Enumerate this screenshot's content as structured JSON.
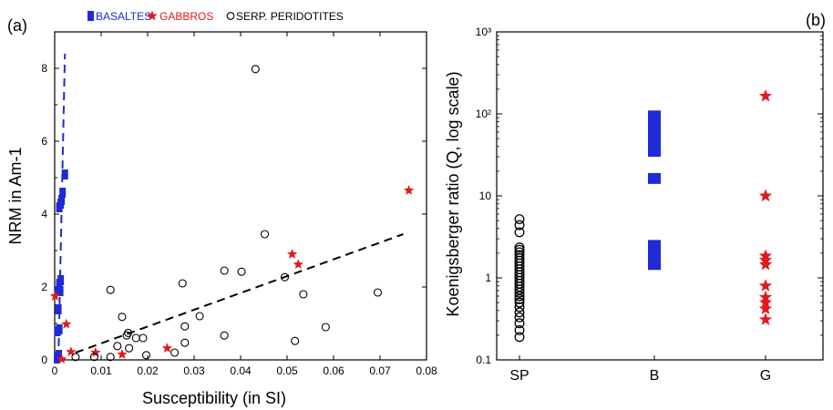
{
  "figure": {
    "panel_a_label": "(a)",
    "panel_b_label": "(b)"
  },
  "colors": {
    "basalt": "#1f2bd6",
    "gabbro": "#e01b1b",
    "peridotite": "#000000",
    "text": "#000000"
  },
  "chart_data": [
    {
      "type": "scatter",
      "panel": "(a)",
      "xlabel": "Susceptibility (in SI)",
      "ylabel": "NRM in Am-1",
      "xlim": [
        0,
        0.08
      ],
      "ylim": [
        0,
        9
      ],
      "xticks": [
        "0",
        "0.01",
        "0.02",
        "0.03",
        "0.04",
        "0.05",
        "0.06",
        "0.07",
        "0.08"
      ],
      "yticks": [
        "0",
        "2",
        "4",
        "6",
        "8"
      ],
      "legend": [
        {
          "label": "BASALTES",
          "symbol": "square",
          "color": "#1f2bd6"
        },
        {
          "label": "GABBROS",
          "symbol": "star",
          "color": "#e01b1b"
        },
        {
          "label": "SERP. PERIDOTITES",
          "symbol": "circle",
          "color": "#000000"
        }
      ],
      "legend_position": "top",
      "series": [
        {
          "name": "BASALTES",
          "marker": "square",
          "color": "#1f2bd6",
          "points": [
            [
              0.0004,
              0.05
            ],
            [
              0.0006,
              0.1
            ],
            [
              0.0008,
              0.15
            ],
            [
              0.0005,
              0.8
            ],
            [
              0.0009,
              0.85
            ],
            [
              0.0007,
              1.4
            ],
            [
              0.0006,
              1.9
            ],
            [
              0.0009,
              2.1
            ],
            [
              0.0012,
              2.2
            ],
            [
              0.0011,
              1.9
            ],
            [
              0.0009,
              4.2
            ],
            [
              0.0012,
              4.3
            ],
            [
              0.0014,
              4.4
            ],
            [
              0.0016,
              4.6
            ],
            [
              0.0021,
              5.1
            ]
          ]
        },
        {
          "name": "GABBROS",
          "marker": "star",
          "color": "#e01b1b",
          "points": [
            [
              0.0001,
              1.75
            ],
            [
              0.0025,
              0.98
            ],
            [
              0.0015,
              0.02
            ],
            [
              0.0035,
              0.22
            ],
            [
              0.0088,
              0.2
            ],
            [
              0.0145,
              0.15
            ],
            [
              0.0242,
              0.32
            ],
            [
              0.0511,
              2.9
            ],
            [
              0.0524,
              2.62
            ],
            [
              0.0762,
              4.65
            ]
          ]
        },
        {
          "name": "SERP. PERIDOTITES",
          "marker": "circle",
          "color": "#000000",
          "points": [
            [
              0.0045,
              0.08
            ],
            [
              0.0085,
              0.08
            ],
            [
              0.012,
              0.08
            ],
            [
              0.0135,
              0.38
            ],
            [
              0.016,
              0.32
            ],
            [
              0.0175,
              0.6
            ],
            [
              0.019,
              0.6
            ],
            [
              0.0197,
              0.13
            ],
            [
              0.0145,
              1.18
            ],
            [
              0.0155,
              0.67
            ],
            [
              0.0158,
              0.74
            ],
            [
              0.012,
              1.92
            ],
            [
              0.0258,
              0.2
            ],
            [
              0.0275,
              2.1
            ],
            [
              0.028,
              0.92
            ],
            [
              0.028,
              0.47
            ],
            [
              0.0312,
              1.2
            ],
            [
              0.0365,
              0.67
            ],
            [
              0.0365,
              2.45
            ],
            [
              0.0402,
              2.42
            ],
            [
              0.0432,
              7.98
            ],
            [
              0.0452,
              3.45
            ],
            [
              0.0495,
              2.27
            ],
            [
              0.0517,
              0.52
            ],
            [
              0.0535,
              1.8
            ],
            [
              0.0583,
              0.9
            ],
            [
              0.0695,
              1.85
            ]
          ]
        }
      ],
      "trend_lines": [
        {
          "series": "BASALTES",
          "color": "#1f2bd6",
          "style": "dashed",
          "points": [
            [
              0.0008,
              0
            ],
            [
              0.0022,
              8.4
            ]
          ]
        },
        {
          "series": "overall",
          "color": "#000000",
          "style": "dashed",
          "points": [
            [
              0.0045,
              0.2
            ],
            [
              0.075,
              3.45
            ]
          ]
        }
      ]
    },
    {
      "type": "scatter",
      "panel": "(b)",
      "xlabel": "",
      "ylabel": "Koenigsberger ratio  (Q, log scale)",
      "yscale": "log",
      "ylim": [
        0.1,
        1000
      ],
      "yticks": [
        "0.1",
        "1",
        "10",
        "10²",
        "10³"
      ],
      "categories": [
        "SP",
        "B",
        "G"
      ],
      "series": [
        {
          "name": "SP",
          "category": "SP",
          "marker": "circle",
          "color": "#000000",
          "values": [
            0.19,
            0.23,
            0.28,
            0.33,
            0.38,
            0.44,
            0.5,
            0.55,
            0.6,
            0.66,
            0.72,
            0.78,
            0.85,
            0.92,
            1.0,
            1.08,
            1.17,
            1.27,
            1.38,
            1.5,
            1.62,
            1.75,
            1.9,
            2.05,
            2.2,
            2.35,
            3.6,
            4.4,
            5.2
          ]
        },
        {
          "name": "B",
          "category": "B",
          "marker": "square",
          "color": "#1f2bd6",
          "ranges": [
            [
              1.25,
              2.9
            ],
            [
              14,
              19
            ],
            [
              30,
              110
            ]
          ]
        },
        {
          "name": "G",
          "category": "G",
          "marker": "star",
          "color": "#e01b1b",
          "values": [
            0.31,
            0.42,
            0.5,
            0.58,
            0.8,
            1.45,
            1.65,
            1.85,
            10,
            165
          ]
        }
      ]
    }
  ]
}
